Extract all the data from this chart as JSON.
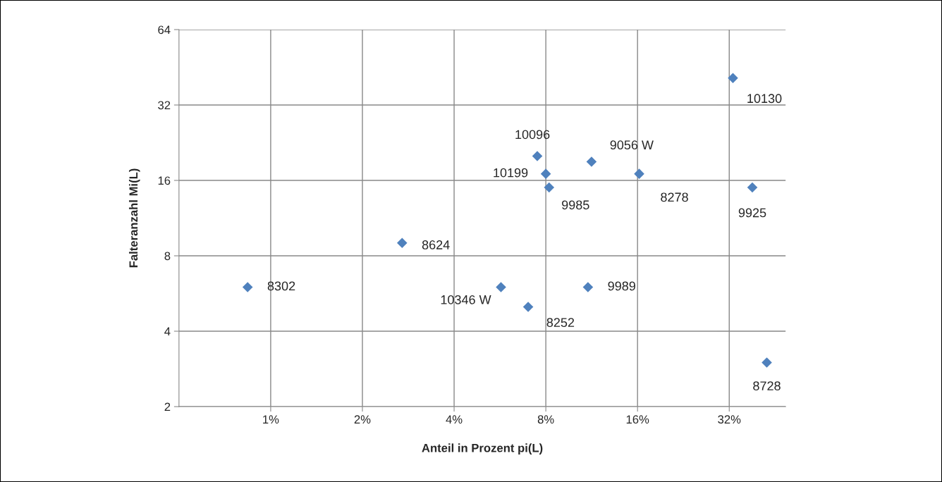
{
  "chart_data": {
    "type": "scatter",
    "xlabel": "Anteil in Prozent pi(L)",
    "ylabel": "Falteranzahl Mi(L)",
    "log": "xy",
    "grid": true,
    "legend": false,
    "marker": "diamond",
    "xlim": [
      0.5,
      49
    ],
    "xticks": [
      {
        "value": 1,
        "label": "1%"
      },
      {
        "value": 2,
        "label": "2%"
      },
      {
        "value": 4,
        "label": "4%"
      },
      {
        "value": 8,
        "label": "8%"
      },
      {
        "value": 16,
        "label": "16%"
      },
      {
        "value": 32,
        "label": "32%"
      }
    ],
    "ylim": [
      2,
      64
    ],
    "yticks": [
      2,
      4,
      8,
      16,
      32,
      64
    ],
    "series": [
      {
        "color": "#4f81bd",
        "x": [
          0.84,
          2.7,
          5.7,
          7.0,
          7.5,
          8.0,
          8.2,
          11.3,
          11.0,
          16.2,
          32.9,
          38.1,
          42.5
        ],
        "values": [
          6,
          9,
          6,
          5,
          20,
          17,
          15,
          19,
          6,
          17,
          41,
          15,
          3
        ]
      }
    ],
    "annotations": [
      {
        "text": "8302",
        "x": 0.84,
        "y": 6
      },
      {
        "text": "8624",
        "x": 2.7,
        "y": 9
      },
      {
        "text": "10346 W",
        "x": 5.7,
        "y": 6
      },
      {
        "text": "8252",
        "x": 7.0,
        "y": 5
      },
      {
        "text": "10096",
        "x": 7.5,
        "y": 20
      },
      {
        "text": "10199",
        "x": 8.0,
        "y": 17
      },
      {
        "text": "9985",
        "x": 8.2,
        "y": 15
      },
      {
        "text": "9056 W",
        "x": 11.3,
        "y": 19
      },
      {
        "text": "9989",
        "x": 11.0,
        "y": 6
      },
      {
        "text": "8278",
        "x": 16.2,
        "y": 17
      },
      {
        "text": "10130",
        "x": 32.9,
        "y": 41
      },
      {
        "text": "9925",
        "x": 38.1,
        "y": 15
      },
      {
        "text": "8728",
        "x": 42.5,
        "y": 3
      }
    ]
  }
}
